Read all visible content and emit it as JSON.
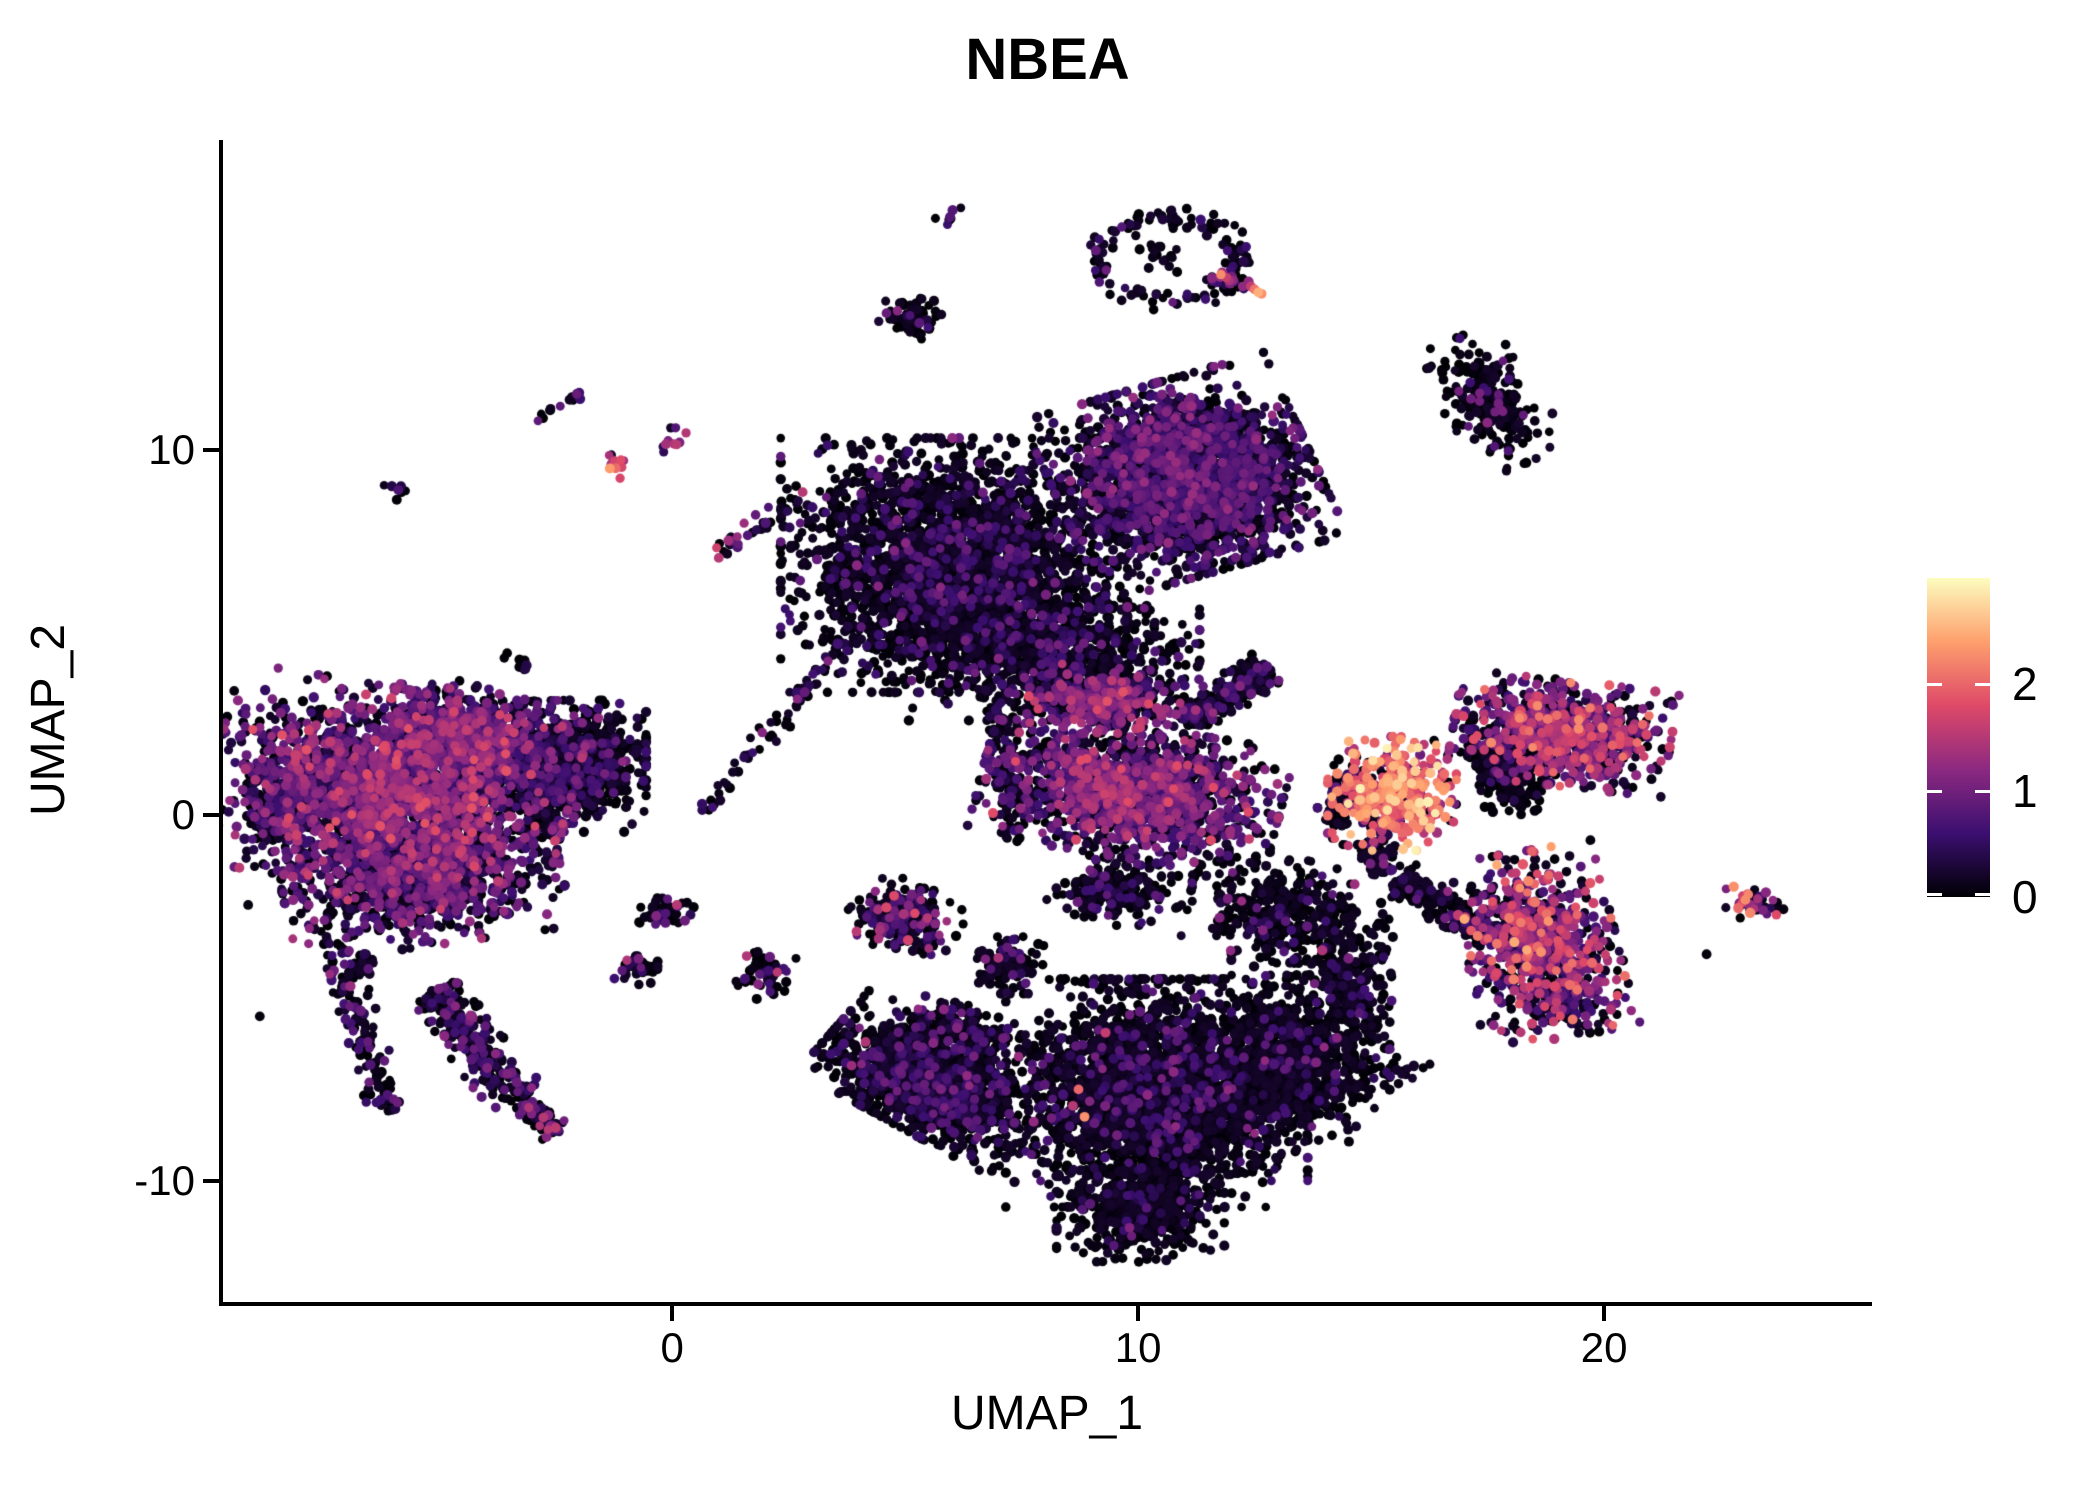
{
  "figure": {
    "background": "#FFFFFF",
    "axis_color": "#000000",
    "text_color": "#000000"
  },
  "chart_data": {
    "type": "scatter",
    "title": "NBEA",
    "xlabel": "UMAP_1",
    "ylabel": "UMAP_2",
    "x_ticks": [
      0,
      10,
      20
    ],
    "y_ticks": [
      10,
      0,
      -10
    ],
    "x_range": [
      -9.64,
      25.75
    ],
    "y_range": [
      -13.32,
      18.49
    ],
    "grid": false,
    "legend_position": "right",
    "point_count_approx": 25300,
    "colorbar": {
      "ticks": [
        0,
        1,
        2
      ],
      "vmin": 0,
      "vmax": 3,
      "palette_name": "magma",
      "palette": [
        [
          0,
          "#000004"
        ],
        [
          0.2,
          "#3B0F70"
        ],
        [
          0.4,
          "#8C2981"
        ],
        [
          0.6,
          "#DE4968"
        ],
        [
          0.8,
          "#FE9F6D"
        ],
        [
          1,
          "#FCFDBF"
        ]
      ]
    },
    "clusters": [
      {
        "name": "left-main",
        "shape": "blob",
        "cx": -6.05,
        "cy": 0.7,
        "rx": 3.2,
        "ry": 2.3,
        "rot": -12,
        "n": 2300,
        "black": 0.28,
        "mean": 0.85,
        "sd": 0.42
      },
      {
        "name": "left-top",
        "shape": "blob",
        "cx": -4.35,
        "cy": 2.2,
        "rx": 1.6,
        "ry": 1.1,
        "rot": -20,
        "n": 700,
        "black": 0.35,
        "mean": 0.75,
        "sd": 0.4
      },
      {
        "name": "left-right-dark",
        "shape": "blob",
        "cx": -2.3,
        "cy": 1.35,
        "rx": 1.45,
        "ry": 1.5,
        "rot": 0,
        "n": 900,
        "black": 0.72,
        "mean": 0.5,
        "sd": 0.3
      },
      {
        "name": "left-bottom",
        "shape": "blob",
        "cx": -5.4,
        "cy": -1.65,
        "rx": 2.5,
        "ry": 1.6,
        "rot": 10,
        "n": 1100,
        "black": 0.45,
        "mean": 0.7,
        "sd": 0.4
      },
      {
        "name": "left-west-fringe",
        "shape": "blob",
        "cx": -8.3,
        "cy": 0.4,
        "rx": 0.9,
        "ry": 1.6,
        "rot": 0,
        "n": 260,
        "black": 0.5,
        "mean": 0.6,
        "sd": 0.35
      },
      {
        "name": "left-tail-a",
        "shape": "line",
        "x1": -5.15,
        "y1": -4.8,
        "x2": -3.3,
        "y2": -7.8,
        "w": 0.45,
        "n": 260,
        "black": 0.55,
        "mean": 0.6,
        "sd": 0.35
      },
      {
        "name": "left-tail-a2",
        "shape": "line",
        "x1": -3.3,
        "y1": -7.8,
        "x2": -2.45,
        "y2": -8.7,
        "w": 0.25,
        "n": 70,
        "black": 0.5,
        "mean": 0.7,
        "sd": 0.4
      },
      {
        "name": "left-tail-b",
        "shape": "line",
        "x1": -7.35,
        "y1": -3.3,
        "x2": -6.05,
        "y2": -8.1,
        "w": 0.3,
        "n": 130,
        "black": 0.6,
        "mean": 0.55,
        "sd": 0.3
      },
      {
        "name": "clump-sw",
        "shape": "blob",
        "cx": -6.65,
        "cy": -4.15,
        "rx": 0.3,
        "ry": 0.3,
        "rot": 0,
        "n": 28,
        "black": 0.7,
        "mean": 0.5,
        "sd": 0.3
      },
      {
        "name": "clump-se-of-left",
        "shape": "blob",
        "cx": -0.7,
        "cy": -4.15,
        "rx": 0.45,
        "ry": 0.4,
        "rot": 0,
        "n": 45,
        "black": 0.65,
        "mean": 0.6,
        "sd": 0.35
      },
      {
        "name": "tiny-pair",
        "shape": "blob",
        "cx": -3.3,
        "cy": 4.05,
        "rx": 0.3,
        "ry": 0.4,
        "rot": 0,
        "n": 8,
        "black": 0.75,
        "mean": 0.5,
        "sd": 0.3
      },
      {
        "name": "tiny-nw",
        "shape": "blob",
        "cx": -5.9,
        "cy": 9.0,
        "rx": 0.3,
        "ry": 0.3,
        "rot": 0,
        "n": 7,
        "black": 0.6,
        "mean": 0.5,
        "sd": 0.3
      },
      {
        "name": "tiny-streak-nw",
        "shape": "line",
        "x1": -2.95,
        "y1": 10.8,
        "x2": -1.9,
        "y2": 11.55,
        "w": 0.15,
        "n": 14,
        "black": 0.45,
        "mean": 0.7,
        "sd": 0.35
      },
      {
        "name": "pink-small",
        "shape": "blob",
        "cx": -1.25,
        "cy": 9.65,
        "rx": 0.4,
        "ry": 0.35,
        "rot": 0,
        "n": 13,
        "black": 0.15,
        "mean": 1.7,
        "sd": 0.45
      },
      {
        "name": "purple-small",
        "shape": "blob",
        "cx": -0.1,
        "cy": 10.25,
        "rx": 0.4,
        "ry": 0.3,
        "rot": 0,
        "n": 11,
        "black": 0.3,
        "mean": 1.0,
        "sd": 0.35
      },
      {
        "name": "streak-s",
        "shape": "line",
        "x1": 2.75,
        "y1": 8.75,
        "x2": 1.05,
        "y2": 7.2,
        "w": 0.22,
        "n": 34,
        "black": 0.55,
        "mean": 0.8,
        "sd": 0.45
      },
      {
        "name": "tiny-top",
        "shape": "blob",
        "cx": 5.95,
        "cy": 16.3,
        "rx": 0.25,
        "ry": 0.3,
        "rot": 0,
        "n": 7,
        "black": 0.5,
        "mean": 0.8,
        "sd": 0.3
      },
      {
        "name": "ring",
        "shape": "ring",
        "cx": 10.65,
        "cy": 15.25,
        "rx": 1.5,
        "ry": 1.15,
        "n": 130,
        "black": 0.78,
        "mean": 0.5,
        "sd": 0.3,
        "jitter": 0.12
      },
      {
        "name": "ring-inner",
        "shape": "blob",
        "cx": 10.6,
        "cy": 15.3,
        "rx": 0.6,
        "ry": 0.45,
        "rot": 0,
        "n": 16,
        "black": 0.85,
        "mean": 0.4,
        "sd": 0.25
      },
      {
        "name": "ring-tail",
        "shape": "line",
        "x1": 11.6,
        "y1": 14.9,
        "x2": 12.55,
        "y2": 14.35,
        "w": 0.12,
        "n": 14,
        "black": 0.25,
        "mean": 1.2,
        "sd": 0.6
      },
      {
        "name": "blob-top-left",
        "shape": "blob",
        "cx": 5.15,
        "cy": 13.65,
        "rx": 0.55,
        "ry": 0.45,
        "rot": -15,
        "n": 85,
        "black": 0.88,
        "mean": 0.5,
        "sd": 0.3
      },
      {
        "name": "ne-small",
        "shape": "blob",
        "cx": 17.55,
        "cy": 11.35,
        "rx": 0.85,
        "ry": 1.55,
        "rot": 28,
        "n": 230,
        "black": 0.86,
        "mean": 0.75,
        "sd": 0.25
      },
      {
        "name": "central-head",
        "shape": "blob",
        "cx": 11.0,
        "cy": 9.25,
        "rx": 2.3,
        "ry": 2.2,
        "rot": 20,
        "n": 2700,
        "black": 0.5,
        "mean": 0.55,
        "sd": 0.3
      },
      {
        "name": "central-body",
        "shape": "blob",
        "cx": 6.05,
        "cy": 6.85,
        "rx": 3.1,
        "ry": 2.9,
        "rot": 0,
        "n": 2900,
        "black": 0.84,
        "mean": 0.5,
        "sd": 0.28
      },
      {
        "name": "central-south",
        "shape": "blob",
        "cx": 8.2,
        "cy": 4.4,
        "rx": 2.6,
        "ry": 1.5,
        "rot": 0,
        "n": 800,
        "black": 0.82,
        "mean": 0.55,
        "sd": 0.3
      },
      {
        "name": "bridge-west",
        "shape": "line",
        "x1": 3.7,
        "y1": 4.75,
        "x2": 0.7,
        "y2": 0.1,
        "w": 0.2,
        "n": 70,
        "black": 0.75,
        "mean": 0.5,
        "sd": 0.3
      },
      {
        "name": "chain-vertical",
        "shape": "line",
        "x1": 7.1,
        "y1": 3.15,
        "x2": 7.35,
        "y2": -0.95,
        "w": 0.3,
        "n": 90,
        "black": 0.7,
        "mean": 0.6,
        "sd": 0.35
      },
      {
        "name": "mid-cap",
        "shape": "blob",
        "cx": 9.45,
        "cy": 3.15,
        "rx": 1.5,
        "ry": 0.75,
        "rot": -5,
        "n": 420,
        "black": 0.3,
        "mean": 0.9,
        "sd": 0.4
      },
      {
        "name": "mid-main",
        "shape": "blob",
        "cx": 9.85,
        "cy": 0.65,
        "rx": 2.7,
        "ry": 1.5,
        "rot": -12,
        "n": 1600,
        "black": 0.38,
        "mean": 0.8,
        "sd": 0.42
      },
      {
        "name": "mid-wing",
        "shape": "line",
        "x1": 11.0,
        "y1": 2.55,
        "x2": 12.8,
        "y2": 4.05,
        "w": 0.35,
        "n": 260,
        "black": 0.75,
        "mean": 0.55,
        "sd": 0.3
      },
      {
        "name": "mid-se-scatter",
        "shape": "blob",
        "cx": 13.25,
        "cy": -2.75,
        "rx": 1.9,
        "ry": 1.3,
        "rot": -20,
        "n": 420,
        "black": 0.86,
        "mean": 0.6,
        "sd": 0.35
      },
      {
        "name": "mid-below",
        "shape": "blob",
        "cx": 9.6,
        "cy": -2.05,
        "rx": 1.3,
        "ry": 0.8,
        "rot": 0,
        "n": 220,
        "black": 0.8,
        "mean": 0.6,
        "sd": 0.3
      },
      {
        "name": "small-c9",
        "shape": "blob",
        "cx": 5.0,
        "cy": -2.8,
        "rx": 1.0,
        "ry": 0.8,
        "rot": -25,
        "n": 230,
        "black": 0.62,
        "mean": 0.7,
        "sd": 0.45
      },
      {
        "name": "small-w1",
        "shape": "blob",
        "cx": -0.2,
        "cy": -2.65,
        "rx": 0.55,
        "ry": 0.4,
        "rot": 0,
        "n": 42,
        "black": 0.7,
        "mean": 0.7,
        "sd": 0.35
      },
      {
        "name": "small-w2",
        "shape": "blob",
        "cx": 2.05,
        "cy": -4.3,
        "rx": 0.6,
        "ry": 0.5,
        "rot": 20,
        "n": 55,
        "black": 0.72,
        "mean": 0.7,
        "sd": 0.35
      },
      {
        "name": "small-c10",
        "shape": "blob",
        "cx": 7.15,
        "cy": -4.1,
        "rx": 0.7,
        "ry": 0.65,
        "rot": 0,
        "n": 120,
        "black": 0.82,
        "mean": 0.55,
        "sd": 0.3
      },
      {
        "name": "bright-cluster",
        "shape": "blob",
        "cx": 15.45,
        "cy": 0.6,
        "rx": 1.15,
        "ry": 1.3,
        "rot": 0,
        "n": 430,
        "black": 0.1,
        "mean": 1.85,
        "sd": 0.5
      },
      {
        "name": "bright-tail",
        "shape": "line",
        "x1": 14.95,
        "y1": -0.65,
        "x2": 15.35,
        "y2": -1.55,
        "w": 0.3,
        "n": 70,
        "black": 0.85,
        "mean": 0.6,
        "sd": 0.3
      },
      {
        "name": "bright-west-fringe",
        "shape": "blob",
        "cx": 14.45,
        "cy": 0.4,
        "rx": 0.5,
        "ry": 1.0,
        "rot": 0,
        "n": 90,
        "black": 0.8,
        "mean": 0.6,
        "sd": 0.3
      },
      {
        "name": "right-c13",
        "shape": "blob",
        "cx": 19.1,
        "cy": 2.25,
        "rx": 1.95,
        "ry": 1.2,
        "rot": -8,
        "n": 950,
        "black": 0.32,
        "mean": 1.05,
        "sd": 0.5
      },
      {
        "name": "right-c13-wedge",
        "shape": "blob",
        "cx": 17.9,
        "cy": 1.25,
        "rx": 0.65,
        "ry": 1.05,
        "rot": 20,
        "n": 260,
        "black": 0.92,
        "mean": 0.5,
        "sd": 0.3
      },
      {
        "name": "right-c14",
        "shape": "blob",
        "cx": 18.6,
        "cy": -3.55,
        "rx": 1.4,
        "ry": 2.15,
        "rot": 12,
        "n": 800,
        "black": 0.3,
        "mean": 1.15,
        "sd": 0.55
      },
      {
        "name": "right-c14-tail",
        "shape": "line",
        "x1": 15.6,
        "y1": -1.7,
        "x2": 17.5,
        "y2": -3.4,
        "w": 0.35,
        "n": 170,
        "black": 0.88,
        "mean": 0.5,
        "sd": 0.3
      },
      {
        "name": "right-c14-south",
        "shape": "blob",
        "cx": 19.05,
        "cy": -5.35,
        "rx": 0.8,
        "ry": 0.5,
        "rot": 0,
        "n": 80,
        "black": 0.85,
        "mean": 0.5,
        "sd": 0.3
      },
      {
        "name": "far-right-small",
        "shape": "blob",
        "cx": 23.25,
        "cy": -2.45,
        "rx": 0.65,
        "ry": 0.4,
        "rot": -25,
        "n": 42,
        "black": 0.4,
        "mean": 1.1,
        "sd": 0.5
      },
      {
        "name": "bottom-left-wing",
        "shape": "blob",
        "cx": 5.55,
        "cy": -7.3,
        "rx": 2.1,
        "ry": 1.15,
        "rot": -35,
        "n": 1500,
        "black": 0.82,
        "mean": 0.5,
        "sd": 0.3
      },
      {
        "name": "bottom-main",
        "shape": "blob",
        "cx": 10.4,
        "cy": -7.6,
        "rx": 2.7,
        "ry": 2.6,
        "rot": 0,
        "n": 2800,
        "black": 0.88,
        "mean": 0.5,
        "sd": 0.3
      },
      {
        "name": "bottom-right",
        "shape": "blob",
        "cx": 13.3,
        "cy": -6.65,
        "rx": 1.75,
        "ry": 1.9,
        "rot": 0,
        "n": 950,
        "black": 0.9,
        "mean": 0.5,
        "sd": 0.3
      },
      {
        "name": "bottom-tip",
        "shape": "blob",
        "cx": 10.05,
        "cy": -10.9,
        "rx": 1.5,
        "ry": 1.1,
        "rot": 0,
        "n": 480,
        "black": 0.9,
        "mean": 0.45,
        "sd": 0.3
      },
      {
        "name": "bottom-nw-sprinkle",
        "shape": "blob",
        "cx": 6.2,
        "cy": -5.9,
        "rx": 1.2,
        "ry": 0.6,
        "rot": -30,
        "n": 180,
        "black": 0.7,
        "mean": 0.6,
        "sd": 0.3
      },
      {
        "name": "bottom-bridge-east",
        "shape": "blob",
        "cx": 14.6,
        "cy": -4.65,
        "rx": 0.7,
        "ry": 1.3,
        "rot": 0,
        "n": 180,
        "black": 0.9,
        "mean": 0.5,
        "sd": 0.3
      },
      {
        "name": "scatter-se",
        "shape": "blob",
        "cx": 15.3,
        "cy": -7.0,
        "rx": 0.8,
        "ry": 0.5,
        "rot": 0,
        "n": 25,
        "black": 0.9,
        "mean": 0.5,
        "sd": 0.3
      }
    ],
    "extra_points": [
      {
        "x": 12.42,
        "y": 14.48,
        "v": 1.6
      },
      {
        "x": 12.5,
        "y": 14.4,
        "v": 2.1
      },
      {
        "x": 12.58,
        "y": 14.32,
        "v": 2.5
      },
      {
        "x": 12.65,
        "y": 14.28,
        "v": 2.3
      },
      {
        "x": -2.5,
        "y": -8.55,
        "v": 1.55
      },
      {
        "x": 8.72,
        "y": -7.5,
        "v": 2.0
      },
      {
        "x": 8.85,
        "y": -8.25,
        "v": 2.3
      },
      {
        "x": 8.6,
        "y": -7.95,
        "v": 1.5
      },
      {
        "x": 9.3,
        "y": -5.95,
        "v": 1.6
      },
      {
        "x": 4.15,
        "y": -6.2,
        "v": 1.45
      },
      {
        "x": 3.85,
        "y": -6.85,
        "v": 1.3
      },
      {
        "x": 0.1,
        "y": -2.45,
        "v": 1.5
      },
      {
        "x": 1.6,
        "y": -3.85,
        "v": 1.45
      },
      {
        "x": 7.0,
        "y": -3.9,
        "v": 1.4
      },
      {
        "x": -9.1,
        "y": -2.45,
        "v": 0.05
      },
      {
        "x": -8.85,
        "y": -5.5,
        "v": 0.05
      },
      {
        "x": 19.5,
        "y": -1.4,
        "v": 0.8
      },
      {
        "x": 19.52,
        "y": -1.8,
        "v": 0.1
      },
      {
        "x": 22.2,
        "y": -3.8,
        "v": 0.05
      },
      {
        "x": 4.6,
        "y": 13.75,
        "v": 0.9
      },
      {
        "x": 2.8,
        "y": 8.85,
        "v": 1.5
      },
      {
        "x": 1.0,
        "y": 7.05,
        "v": 1.5
      }
    ]
  }
}
